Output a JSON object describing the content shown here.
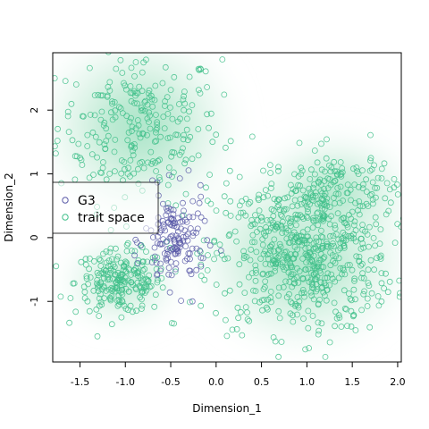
{
  "chart_data": {
    "type": "scatter",
    "xlabel": "Dimension_1",
    "ylabel": "Dimension_2",
    "xlim": [
      -1.8,
      2.04
    ],
    "ylim": [
      -1.95,
      2.9
    ],
    "x_ticks": [
      "-1.5",
      "-1.0",
      "-0.5",
      "0.0",
      "0.5",
      "1.0",
      "1.5",
      "2.0"
    ],
    "x_tick_values": [
      -1.5,
      -1.0,
      -0.5,
      0.0,
      0.5,
      1.0,
      1.5,
      2.0
    ],
    "y_ticks": [
      "-1",
      "0",
      "1",
      "2"
    ],
    "y_tick_values": [
      -1,
      0,
      1,
      2
    ],
    "legend_position": "top-left",
    "background": "density shading of trait space",
    "series": [
      {
        "name": "G3",
        "color": "#5b5ba8",
        "clusters": [
          {
            "center": [
              -0.45,
              -0.05
            ],
            "spread": [
              0.17,
              0.38
            ],
            "count": 150
          }
        ]
      },
      {
        "name": "trait space",
        "color": "#3fbf8a",
        "clusters": [
          {
            "center": [
              -0.85,
              1.75
            ],
            "spread": [
              0.45,
              0.6
            ],
            "count": 260
          },
          {
            "center": [
              -1.05,
              -0.7
            ],
            "spread": [
              0.25,
              0.25
            ],
            "count": 220
          },
          {
            "center": [
              0.95,
              -0.3
            ],
            "spread": [
              0.5,
              0.6
            ],
            "count": 600
          },
          {
            "center": [
              1.3,
              0.7
            ],
            "spread": [
              0.35,
              0.35
            ],
            "count": 150
          }
        ]
      }
    ]
  },
  "legend": {
    "items": [
      {
        "label": "G3",
        "color": "#5b5ba8"
      },
      {
        "label": "trait space",
        "color": "#3fbf8a"
      }
    ]
  }
}
